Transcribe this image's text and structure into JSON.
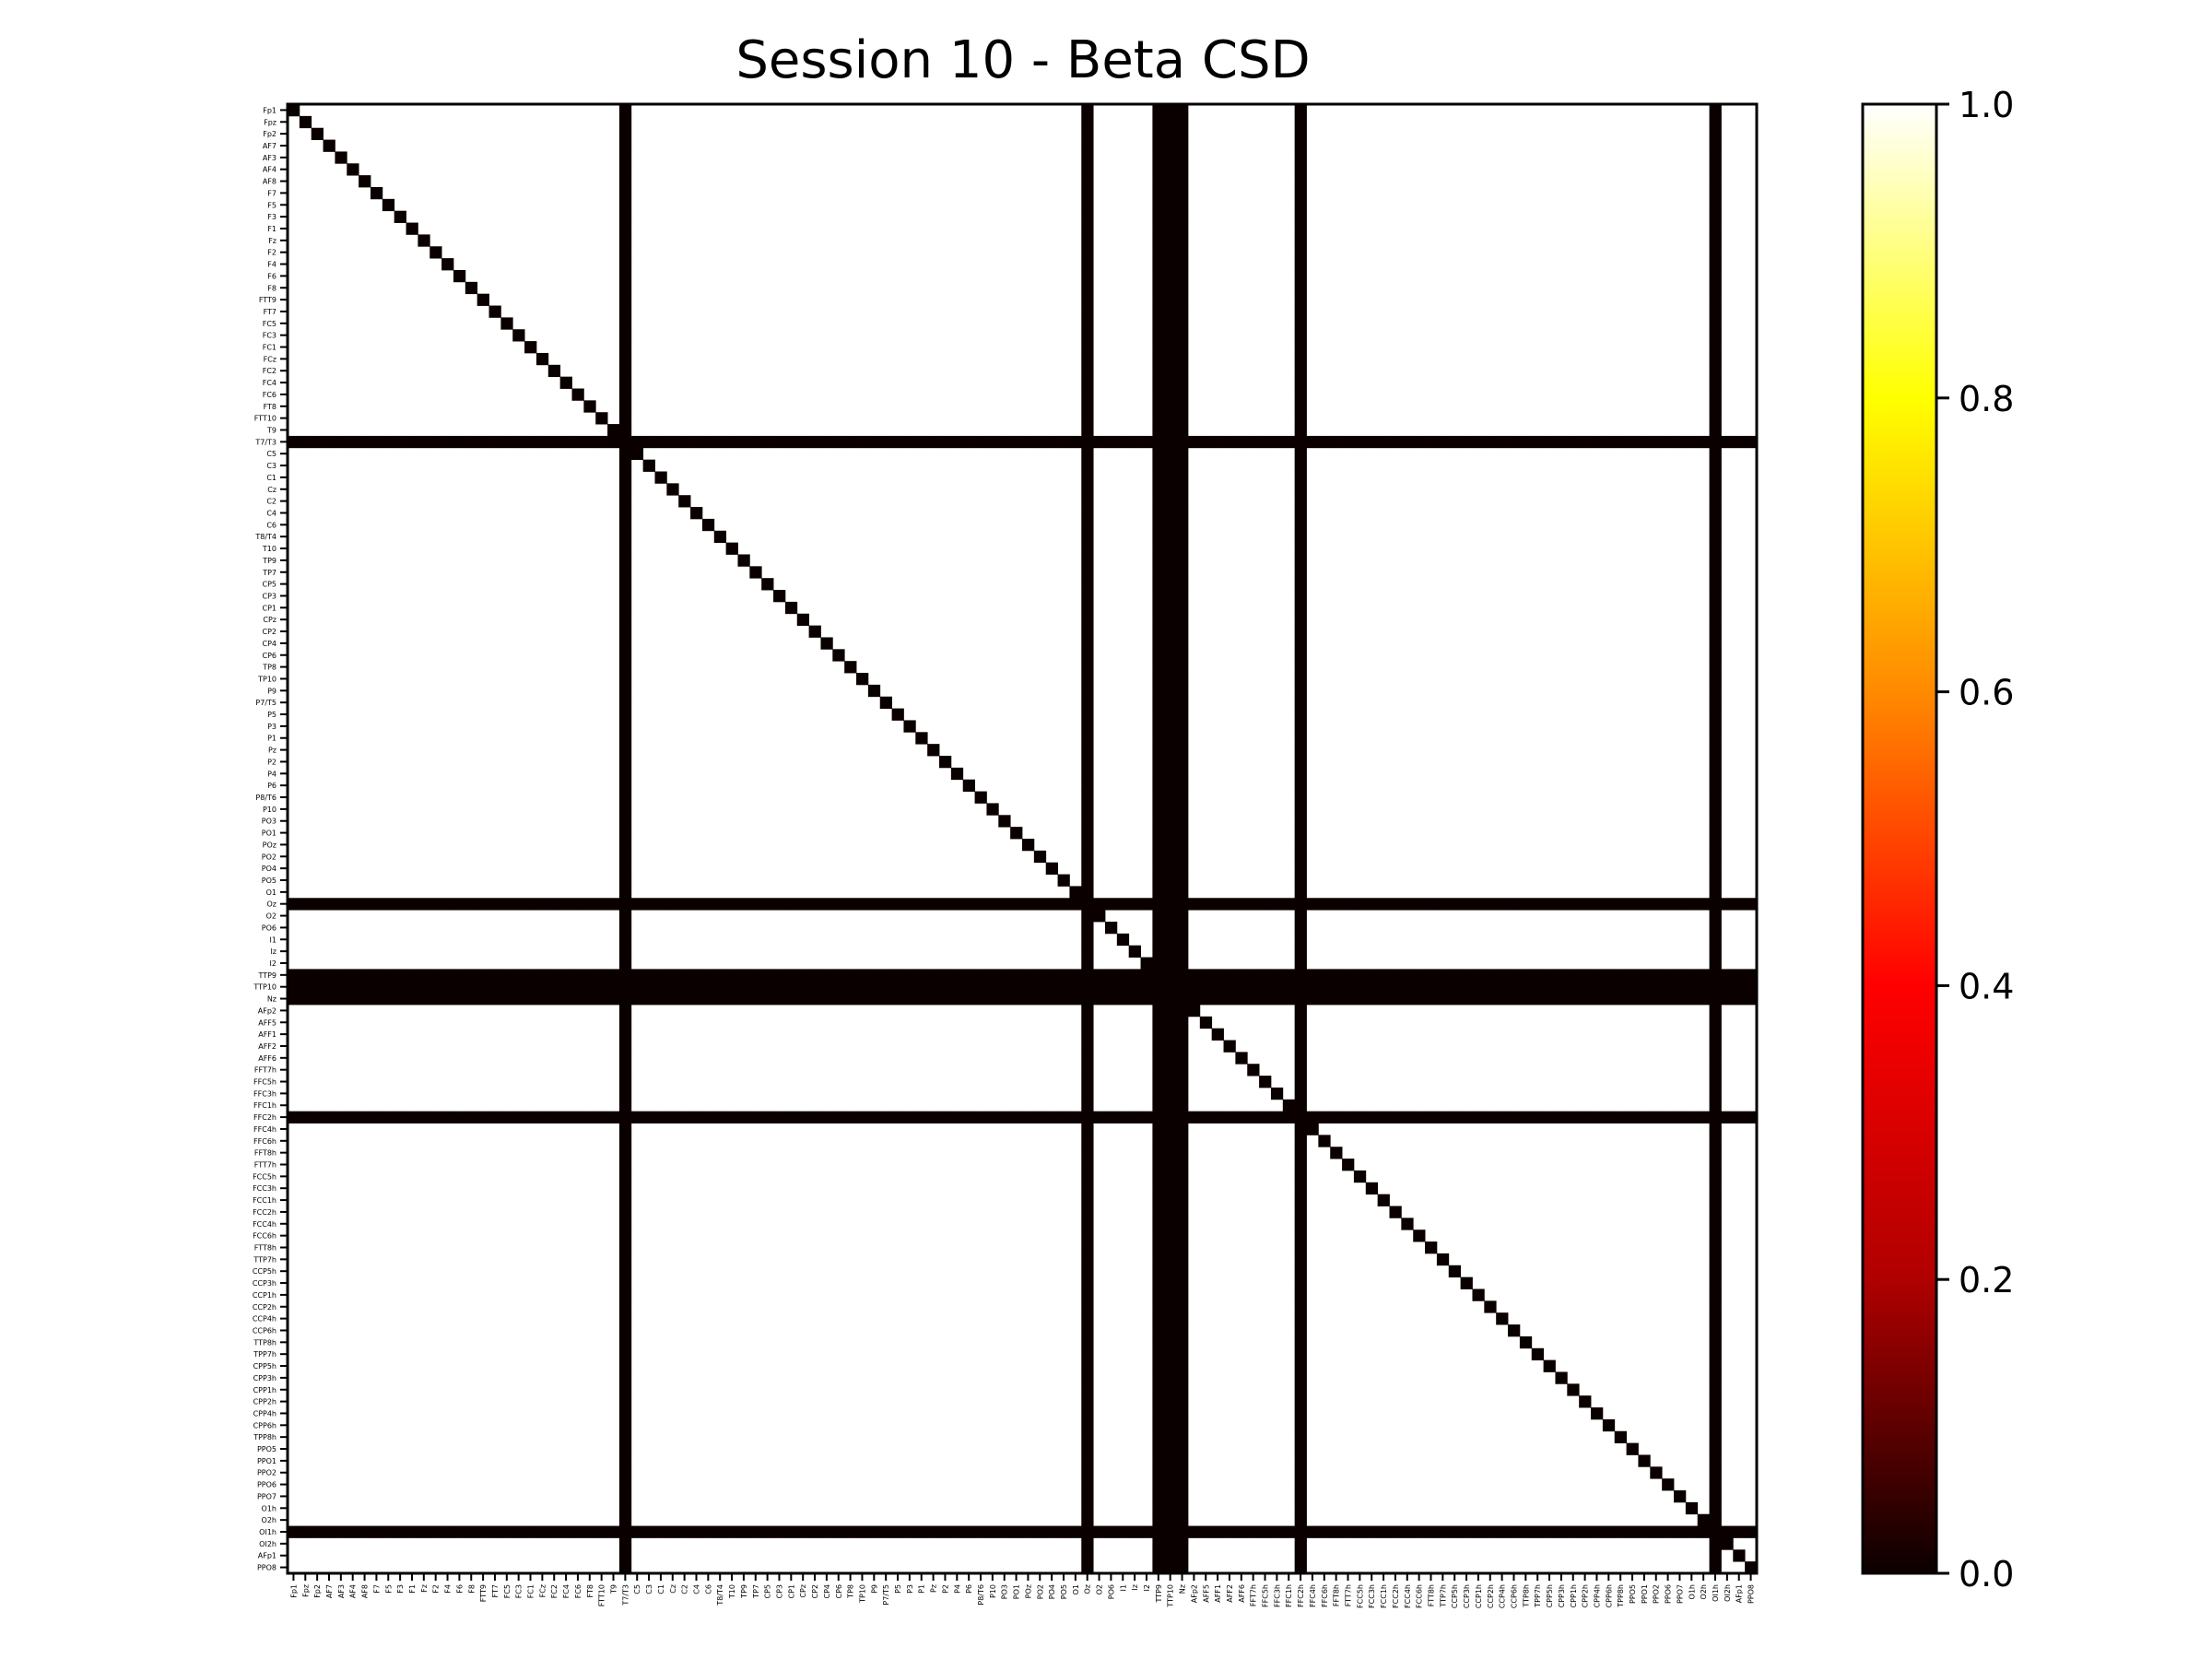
{
  "chart_data": {
    "type": "heatmap",
    "title": "Session 10 - Beta CSD",
    "xlabel": "",
    "ylabel": "",
    "channels": [
      "Fp1",
      "Fpz",
      "Fp2",
      "AF7",
      "AF3",
      "AF4",
      "AF8",
      "F7",
      "F5",
      "F3",
      "F1",
      "Fz",
      "F2",
      "F4",
      "F6",
      "F8",
      "FTT9",
      "FT7",
      "FC5",
      "FC3",
      "FC1",
      "FCz",
      "FC2",
      "FC4",
      "FC6",
      "FT8",
      "FTT10",
      "T9",
      "T7/T3",
      "C5",
      "C3",
      "C1",
      "Cz",
      "C2",
      "C4",
      "C6",
      "T8/T4",
      "T10",
      "TP9",
      "TP7",
      "CP5",
      "CP3",
      "CP1",
      "CPz",
      "CP2",
      "CP4",
      "CP6",
      "TP8",
      "TP10",
      "P9",
      "P7/T5",
      "P5",
      "P3",
      "P1",
      "Pz",
      "P2",
      "P4",
      "P6",
      "P8/T6",
      "P10",
      "PO3",
      "PO1",
      "POz",
      "PO2",
      "PO4",
      "PO5",
      "O1",
      "Oz",
      "O2",
      "PO6",
      "I1",
      "Iz",
      "I2",
      "TTP9",
      "TTP10",
      "Nz",
      "AFp2",
      "AFF5",
      "AFF1",
      "AFF2",
      "AFF6",
      "FFT7h",
      "FFC5h",
      "FFC3h",
      "FFC1h",
      "FFC2h",
      "FFC4h",
      "FFC6h",
      "FFT8h",
      "FTT7h",
      "FCC5h",
      "FCC3h",
      "FCC1h",
      "FCC2h",
      "FCC4h",
      "FCC6h",
      "FTT8h",
      "TTP7h",
      "CCP5h",
      "CCP3h",
      "CCP1h",
      "CCP2h",
      "CCP4h",
      "CCP6h",
      "TTP8h",
      "TPP7h",
      "CPP5h",
      "CPP3h",
      "CPP1h",
      "CPP2h",
      "CPP4h",
      "CPP6h",
      "TPP8h",
      "PPO5",
      "PPO1",
      "PPO2",
      "PPO6",
      "PPO7",
      "O1h",
      "O2h",
      "OI1h",
      "OI2h",
      "AFp1",
      "PPO8"
    ],
    "zero_value_channels": [
      "T7/T3",
      "Oz",
      "TTP9",
      "TTP10",
      "Nz",
      "FFC2h",
      "OI1h"
    ],
    "value_rule": "cell value is 1.0 everywhere except 0.0 on the diagonal and on every row and column of a zero_value_channel",
    "zlim": [
      0.0,
      1.0
    ],
    "colormap": "hot",
    "grid": false,
    "colorbar": {
      "position": "right",
      "ticks": [
        "0.0",
        "0.2",
        "0.4",
        "0.6",
        "0.8",
        "1.0"
      ],
      "tick_values": [
        0.0,
        0.2,
        0.4,
        0.6,
        0.8,
        1.0
      ],
      "colors": [
        "#0b0000",
        "#b00000",
        "#ff0000",
        "#ff8a00",
        "#ffff00",
        "#ffffff"
      ]
    }
  }
}
